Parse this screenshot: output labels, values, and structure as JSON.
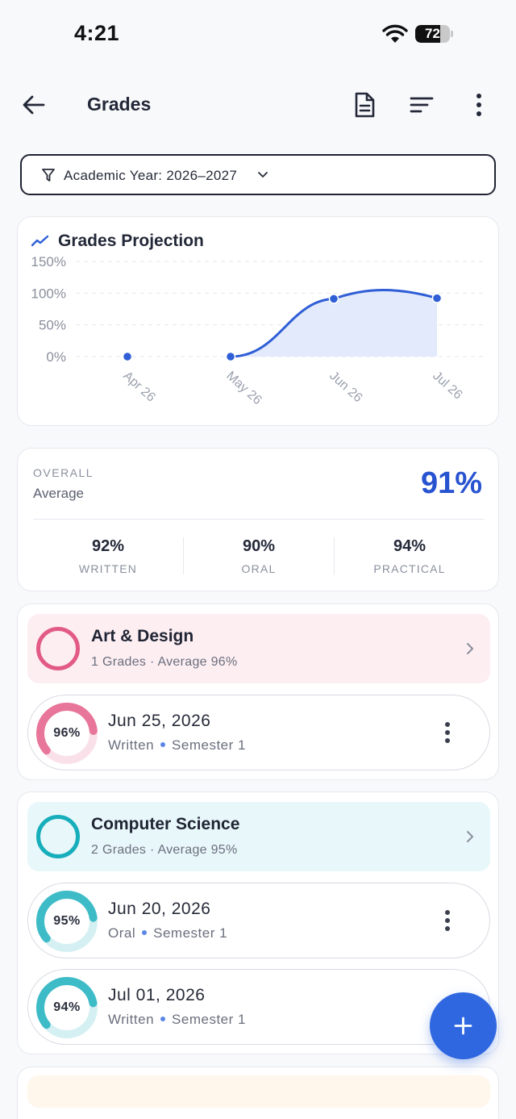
{
  "status_bar": {
    "time": "4:21",
    "battery_level": "72",
    "battery_fraction": 0.72
  },
  "app_bar": {
    "title": "Grades",
    "icons": [
      "back-arrow-icon",
      "document-icon",
      "sort-icon",
      "more-vertical-icon"
    ]
  },
  "filter": {
    "label": "Academic Year: 2026–2027",
    "icons": [
      "filter-icon",
      "chevron-down-icon"
    ]
  },
  "chart_data": {
    "type": "area",
    "title": "Grades Projection",
    "x": [
      "Apr 26",
      "May 26",
      "Jun 26",
      "Jul 26"
    ],
    "y_ticks": [
      "150%",
      "100%",
      "50%",
      "0%"
    ],
    "ylim": [
      0,
      150
    ],
    "series": [
      {
        "values": [
          0,
          0,
          91,
          92
        ]
      }
    ],
    "grid": true,
    "colors": {
      "line": "#2f5ed6",
      "fill": "#dfe8fb"
    }
  },
  "overall": {
    "label": "OVERALL",
    "sub_label": "Average",
    "value": "91%",
    "stats": [
      {
        "value": "92%",
        "label": "WRITTEN"
      },
      {
        "value": "90%",
        "label": "ORAL"
      },
      {
        "value": "94%",
        "label": "PRACTICAL"
      }
    ]
  },
  "groups": [
    {
      "name": "Art & Design",
      "meta": "1 Grades · Average 96%",
      "color": "#e25b86",
      "bg": "#fdeef2",
      "grades": [
        {
          "percent": "96%",
          "value": 0.96,
          "date": "Jun 25, 2026",
          "type": "Written",
          "semester": "Semester 1"
        }
      ]
    },
    {
      "name": "Computer Science",
      "meta": "2 Grades · Average 95%",
      "color": "#17aebb",
      "bg": "#e8f7fa",
      "grades": [
        {
          "percent": "95%",
          "value": 0.95,
          "date": "Jun 20, 2026",
          "type": "Oral",
          "semester": "Semester 1"
        },
        {
          "percent": "94%",
          "value": 0.94,
          "date": "Jul 01, 2026",
          "type": "Written",
          "semester": "Semester 1"
        }
      ]
    }
  ],
  "fab": {
    "icon": "plus-icon"
  }
}
